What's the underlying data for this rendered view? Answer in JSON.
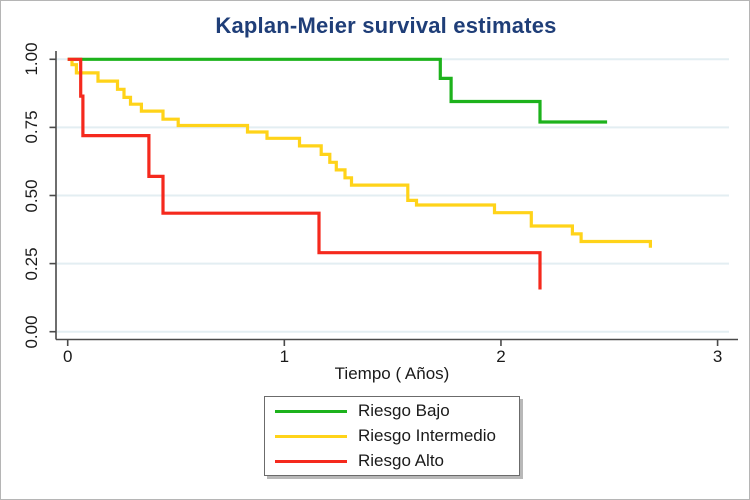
{
  "figure": {
    "title": "Kaplan-Meier survival estimates"
  },
  "chart_data": {
    "type": "line",
    "variant": "kaplan-meier step curves",
    "title": "Kaplan-Meier survival estimates",
    "xlabel": "Tiempo ( Años)",
    "ylabel": "",
    "xlim": [
      0,
      3
    ],
    "ylim": [
      0.0,
      1.0
    ],
    "x_ticks": [
      {
        "v": 0,
        "label": "0"
      },
      {
        "v": 1,
        "label": "1"
      },
      {
        "v": 2,
        "label": "2"
      },
      {
        "v": 3,
        "label": "3"
      }
    ],
    "y_ticks": [
      {
        "v": 0.0,
        "label": "0.00"
      },
      {
        "v": 0.25,
        "label": "0.25"
      },
      {
        "v": 0.5,
        "label": "0.50"
      },
      {
        "v": 0.75,
        "label": "0.75"
      },
      {
        "v": 1.0,
        "label": "1.00"
      }
    ],
    "grid": "horizontal gridlines at every y tick",
    "legend": {
      "position": "bottom-center",
      "border": true,
      "entries": [
        "Riesgo Bajo",
        "Riesgo Intermedio",
        "Riesgo Alto"
      ]
    },
    "series": [
      {
        "name": "Riesgo Bajo",
        "color": "#1db21c",
        "steps": [
          [
            0,
            1.0
          ],
          [
            1.72,
            0.93
          ],
          [
            1.77,
            0.845
          ],
          [
            2.18,
            0.77
          ]
        ],
        "end_t": 2.49
      },
      {
        "name": "Riesgo Intermedio",
        "color": "#ffd319",
        "steps": [
          [
            0,
            1.0
          ],
          [
            0.02,
            0.98
          ],
          [
            0.04,
            0.95
          ],
          [
            0.14,
            0.92
          ],
          [
            0.23,
            0.89
          ],
          [
            0.26,
            0.86
          ],
          [
            0.29,
            0.835
          ],
          [
            0.34,
            0.81
          ],
          [
            0.44,
            0.78
          ],
          [
            0.51,
            0.757
          ],
          [
            0.83,
            0.733
          ],
          [
            0.92,
            0.71
          ],
          [
            1.07,
            0.682
          ],
          [
            1.17,
            0.651
          ],
          [
            1.21,
            0.622
          ],
          [
            1.24,
            0.594
          ],
          [
            1.28,
            0.565
          ],
          [
            1.31,
            0.538
          ],
          [
            1.57,
            0.482
          ],
          [
            1.61,
            0.465
          ],
          [
            1.97,
            0.437
          ],
          [
            2.14,
            0.388
          ],
          [
            2.33,
            0.359
          ],
          [
            2.37,
            0.331
          ],
          [
            2.69,
            0.308
          ]
        ],
        "end_t": 2.69
      },
      {
        "name": "Riesgo Alto",
        "color": "#f5291d",
        "steps": [
          [
            0,
            1.0
          ],
          [
            0.06,
            0.865
          ],
          [
            0.07,
            0.72
          ],
          [
            0.375,
            0.57
          ],
          [
            0.44,
            0.435
          ],
          [
            1.16,
            0.29
          ],
          [
            2.18,
            0.155
          ]
        ],
        "end_t": 2.18
      }
    ],
    "colors": {
      "title": "#1f3e78",
      "axis": "#4a4a4a",
      "grid": "#e3eef2",
      "text": "#1a1a1a"
    }
  }
}
